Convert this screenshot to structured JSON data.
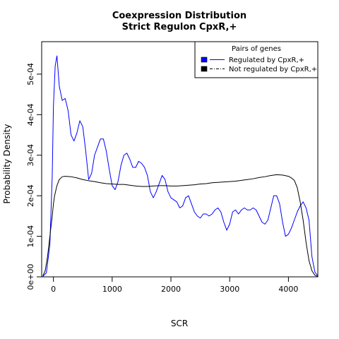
{
  "chart_data": {
    "type": "line",
    "title": "Coexpression Distribution",
    "subtitle": "Strict Regulon CpxR,+",
    "xlabel": "SCR",
    "ylabel": "Probability Density",
    "xlim": [
      -200,
      4500
    ],
    "ylim": [
      0,
      0.00058
    ],
    "xticks": [
      0,
      1000,
      2000,
      3000,
      4000
    ],
    "xtick_labels": [
      "0",
      "1000",
      "2000",
      "3000",
      "4000"
    ],
    "yticks": [
      0,
      0.0001,
      0.0002,
      0.0003,
      0.0004,
      0.0005
    ],
    "ytick_labels": [
      "0e+00",
      "1e-04",
      "2e-04",
      "3e-04",
      "4e-04",
      "5e-04"
    ],
    "legend": {
      "title": "Pairs of genes",
      "placement": "top-right",
      "entries": [
        "Regulated by  CpxR,+",
        "Not regulated by  CpxR,+"
      ]
    },
    "series": [
      {
        "name": "Regulated by  CpxR,+",
        "color": "#0000ff",
        "x": [
          -180,
          -120,
          -60,
          -20,
          0,
          30,
          60,
          100,
          150,
          200,
          250,
          300,
          350,
          400,
          450,
          500,
          550,
          600,
          650,
          700,
          750,
          800,
          850,
          900,
          950,
          1000,
          1050,
          1100,
          1150,
          1200,
          1250,
          1300,
          1350,
          1400,
          1450,
          1500,
          1550,
          1600,
          1650,
          1700,
          1750,
          1800,
          1850,
          1900,
          1950,
          2000,
          2050,
          2100,
          2150,
          2200,
          2250,
          2300,
          2350,
          2400,
          2450,
          2500,
          2550,
          2600,
          2650,
          2700,
          2750,
          2800,
          2850,
          2900,
          2950,
          3000,
          3050,
          3100,
          3150,
          3200,
          3250,
          3300,
          3350,
          3400,
          3450,
          3500,
          3550,
          3600,
          3650,
          3700,
          3750,
          3800,
          3850,
          3900,
          3950,
          4000,
          4050,
          4100,
          4150,
          4200,
          4250,
          4300,
          4350,
          4400,
          4450,
          4500
        ],
        "values": [
          1e-06,
          1e-05,
          8e-05,
          0.00025,
          0.00042,
          0.00052,
          0.000545,
          0.00047,
          0.000435,
          0.00044,
          0.00041,
          0.00035,
          0.000335,
          0.000355,
          0.000385,
          0.00037,
          0.00031,
          0.00024,
          0.000255,
          0.0003,
          0.00032,
          0.00034,
          0.00034,
          0.00031,
          0.000265,
          0.000225,
          0.000215,
          0.000235,
          0.000275,
          0.0003,
          0.000305,
          0.00029,
          0.00027,
          0.00027,
          0.000285,
          0.00028,
          0.00027,
          0.00025,
          0.00021,
          0.000195,
          0.00021,
          0.00023,
          0.00025,
          0.00024,
          0.00021,
          0.000195,
          0.00019,
          0.000185,
          0.00017,
          0.000175,
          0.000195,
          0.0002,
          0.00018,
          0.00016,
          0.00015,
          0.000145,
          0.000155,
          0.000155,
          0.00015,
          0.000155,
          0.000165,
          0.00017,
          0.00016,
          0.000135,
          0.000115,
          0.00013,
          0.00016,
          0.000165,
          0.000155,
          0.000165,
          0.00017,
          0.000165,
          0.000165,
          0.00017,
          0.000165,
          0.00015,
          0.000135,
          0.00013,
          0.00014,
          0.00017,
          0.0002,
          0.0002,
          0.00018,
          0.000135,
          0.0001,
          0.000105,
          0.00012,
          0.00014,
          0.00016,
          0.000175,
          0.000185,
          0.00017,
          0.00014,
          5e-05,
          1.2e-05,
          2e-06
        ]
      },
      {
        "name": "Not regulated by  CpxR,+",
        "color": "#000000",
        "x": [
          -180,
          -140,
          -100,
          -60,
          -20,
          0,
          20,
          60,
          100,
          150,
          200,
          300,
          400,
          500,
          600,
          700,
          800,
          900,
          1000,
          1100,
          1200,
          1300,
          1400,
          1500,
          1600,
          1700,
          1800,
          1900,
          2000,
          2100,
          2200,
          2300,
          2400,
          2500,
          2600,
          2700,
          2800,
          2900,
          3000,
          3100,
          3200,
          3300,
          3400,
          3500,
          3600,
          3700,
          3800,
          3900,
          4000,
          4050,
          4100,
          4150,
          4200,
          4250,
          4300,
          4350,
          4400,
          4450,
          4500
        ],
        "values": [
          2e-06,
          1.5e-05,
          5e-05,
          0.0001,
          0.00015,
          0.00018,
          0.0002,
          0.000225,
          0.00024,
          0.000247,
          0.000248,
          0.000247,
          0.000244,
          0.00024,
          0.000237,
          0.000235,
          0.000232,
          0.00023,
          0.000229,
          0.000228,
          0.000228,
          0.000226,
          0.000224,
          0.000223,
          0.000223,
          0.000224,
          0.000225,
          0.000225,
          0.000224,
          0.000224,
          0.000225,
          0.000226,
          0.000227,
          0.000229,
          0.00023,
          0.000232,
          0.000233,
          0.000234,
          0.000235,
          0.000236,
          0.000238,
          0.00024,
          0.000242,
          0.000245,
          0.000247,
          0.00025,
          0.000252,
          0.000251,
          0.000248,
          0.000244,
          0.000238,
          0.00022,
          0.000185,
          0.00014,
          8.5e-05,
          4e-05,
          1.5e-05,
          4e-06,
          1e-06
        ]
      }
    ]
  }
}
